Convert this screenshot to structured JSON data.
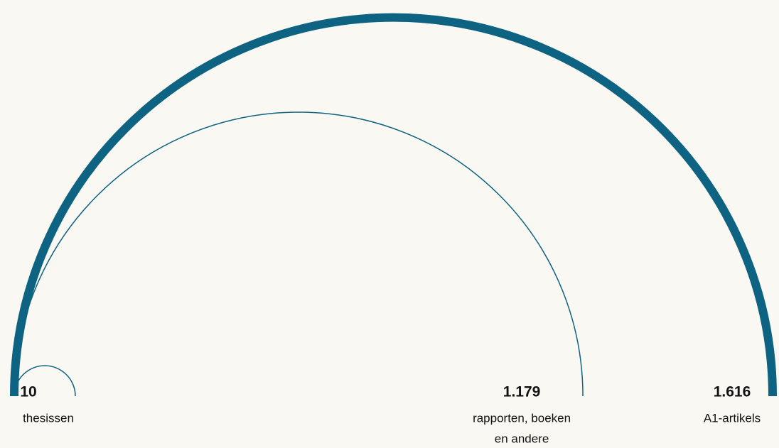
{
  "chart_data": {
    "type": "arc",
    "categories": [
      [
        "thesissen"
      ],
      [
        "rapporten, boeken",
        "en andere"
      ],
      [
        "A1-artikels"
      ]
    ],
    "values": [
      10,
      1179,
      1616
    ],
    "value_labels": [
      "10",
      "1.179",
      "1.616"
    ],
    "color": "#0e6282"
  }
}
